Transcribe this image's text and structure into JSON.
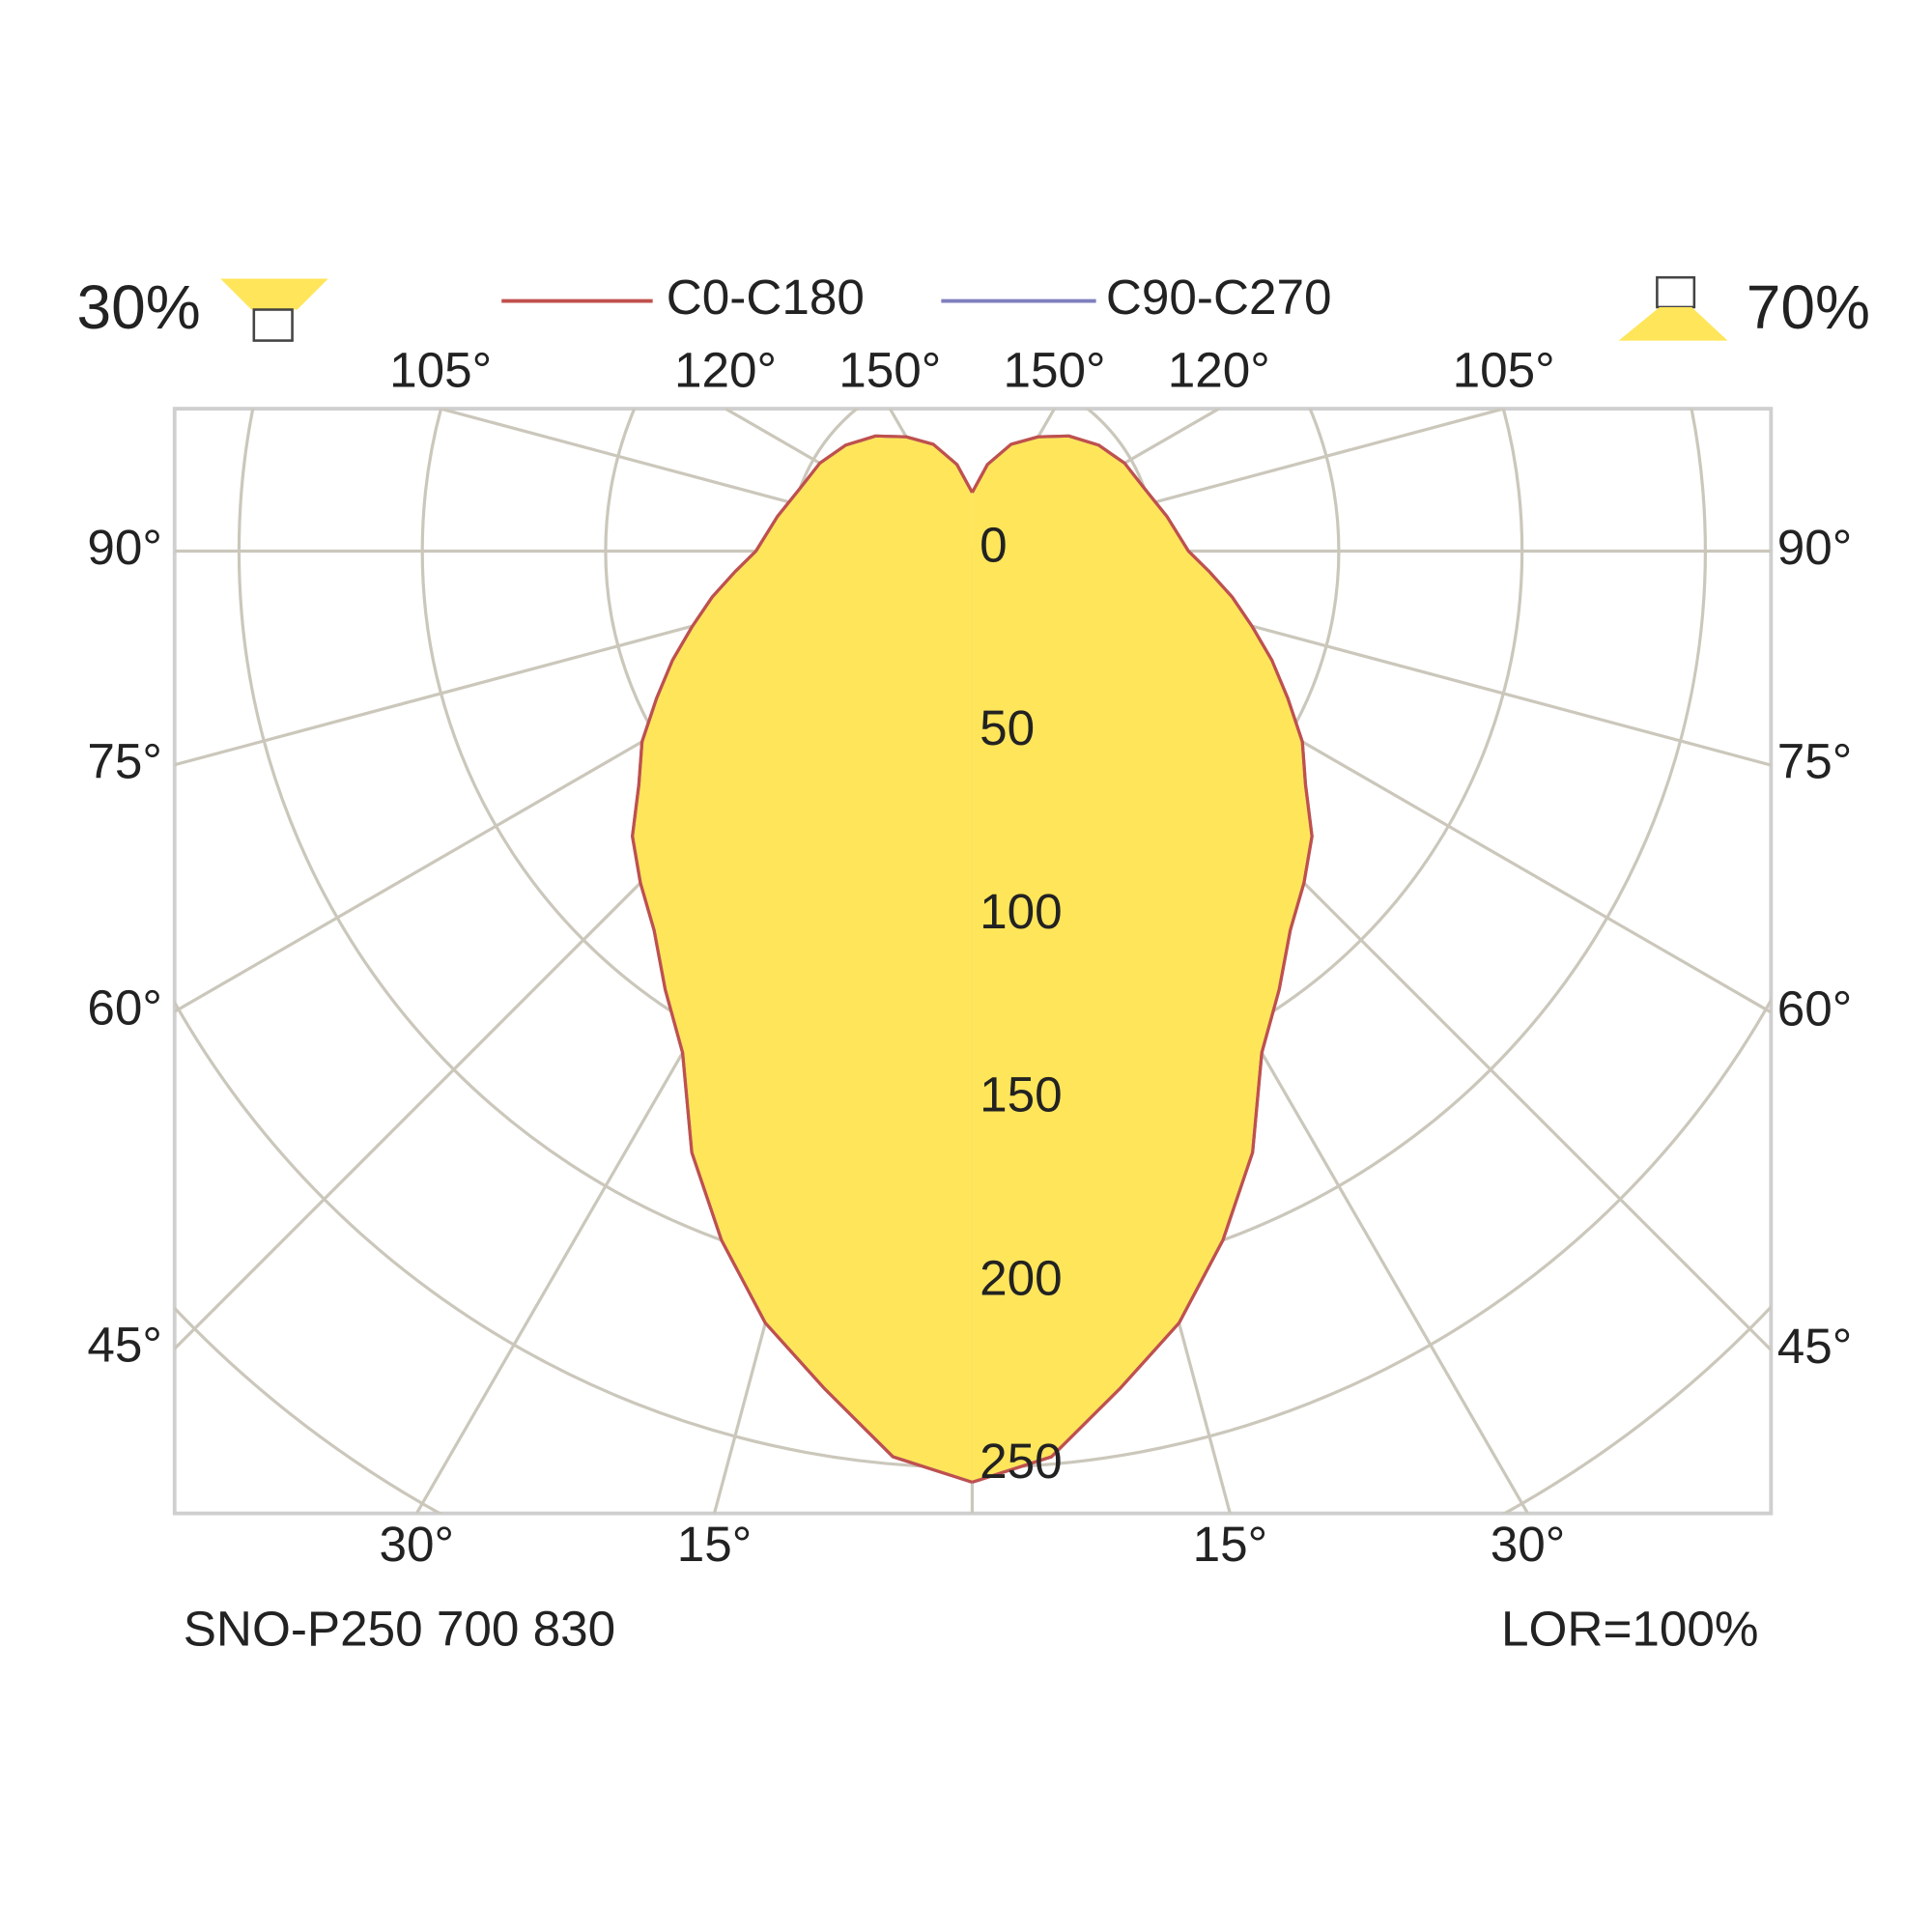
{
  "chart_data": {
    "type": "polar",
    "upward_label": "30%",
    "downward_label": "70%",
    "footer_left": "SNO-P250 700 830",
    "footer_right": "LOR=100%",
    "angles": [
      0,
      5,
      10,
      15,
      20,
      25,
      30,
      35,
      40,
      45,
      50,
      55,
      60,
      65,
      70,
      75,
      80,
      85,
      90,
      100,
      110,
      120,
      130,
      140,
      150,
      160,
      170,
      180
    ],
    "series": [
      {
        "name": "C0-C180",
        "color": "#c0504d",
        "values": [
          254,
          248,
          232,
          218,
          200,
          181,
          158,
          146,
          135,
          128,
          121,
          111,
          104,
          95,
          87,
          79,
          72,
          65,
          59,
          54,
          50,
          48,
          45,
          41,
          36,
          31,
          24,
          16
        ]
      },
      {
        "name": "C90-C270",
        "color": "#7f7fbf",
        "values": [
          254,
          248,
          232,
          218,
          200,
          181,
          158,
          146,
          135,
          128,
          121,
          111,
          104,
          95,
          87,
          79,
          72,
          65,
          59,
          54,
          50,
          48,
          45,
          41,
          36,
          31,
          24,
          16
        ]
      }
    ],
    "fill_color": "#ffe55a",
    "rlim": [
      0,
      250
    ],
    "rticks": [
      0,
      50,
      100,
      150,
      200,
      250
    ],
    "rgrid": [
      300
    ],
    "angle_ticks": [
      {
        "value": 15,
        "label": "15°"
      },
      {
        "value": 30,
        "label": "30°"
      },
      {
        "value": 45,
        "label": "45°"
      },
      {
        "value": 60,
        "label": "60°"
      },
      {
        "value": 75,
        "label": "75°"
      },
      {
        "value": 90,
        "label": "90°"
      },
      {
        "value": 105,
        "label": "105°"
      },
      {
        "value": 120,
        "label": "120°"
      },
      {
        "value": 150,
        "label": "150°"
      }
    ]
  }
}
